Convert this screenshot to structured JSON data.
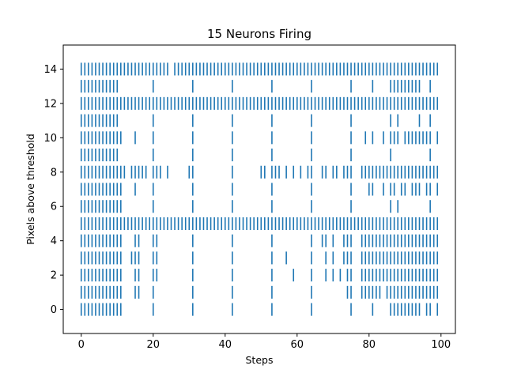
{
  "chart_data": {
    "type": "scatter",
    "marker": "vertical-line",
    "title": "15 Neurons Firing",
    "xlabel": "Steps",
    "ylabel": "Pixels above threshold",
    "xlim": [
      -5,
      104
    ],
    "ylim": [
      -1.4,
      15.4
    ],
    "xticks": [
      0,
      20,
      40,
      60,
      80,
      100
    ],
    "yticks": [
      0,
      2,
      4,
      6,
      8,
      10,
      12,
      14
    ],
    "grid": false,
    "color": "#1f77b4",
    "series": [
      {
        "y": 0,
        "x": [
          0,
          1,
          2,
          3,
          4,
          5,
          6,
          7,
          8,
          9,
          10,
          11,
          20,
          31,
          42,
          53,
          64,
          75,
          81,
          86,
          87,
          88,
          89,
          90,
          91,
          92,
          93,
          94,
          96,
          97,
          99
        ]
      },
      {
        "y": 1,
        "x": [
          0,
          1,
          2,
          3,
          4,
          5,
          6,
          7,
          8,
          9,
          10,
          11,
          15,
          16,
          20,
          31,
          42,
          53,
          64,
          74,
          75,
          78,
          79,
          80,
          81,
          82,
          83,
          85,
          86,
          87,
          88,
          89,
          90,
          91,
          92,
          93,
          94,
          95,
          96,
          97,
          98,
          99
        ]
      },
      {
        "y": 2,
        "x": [
          0,
          1,
          2,
          3,
          4,
          5,
          6,
          7,
          8,
          9,
          10,
          11,
          15,
          16,
          20,
          21,
          31,
          42,
          53,
          59,
          64,
          68,
          70,
          72,
          74,
          75,
          78,
          79,
          80,
          81,
          82,
          83,
          84,
          85,
          86,
          87,
          88,
          89,
          90,
          91,
          92,
          93,
          94,
          95,
          96,
          97,
          98,
          99
        ]
      },
      {
        "y": 3,
        "x": [
          0,
          1,
          2,
          3,
          4,
          5,
          6,
          7,
          8,
          9,
          10,
          11,
          14,
          15,
          16,
          20,
          21,
          31,
          42,
          53,
          57,
          64,
          68,
          70,
          73,
          74,
          75,
          78,
          79,
          80,
          81,
          82,
          83,
          84,
          85,
          86,
          87,
          88,
          89,
          90,
          91,
          92,
          93,
          94,
          95,
          96,
          97,
          98,
          99
        ]
      },
      {
        "y": 4,
        "x": [
          0,
          1,
          2,
          3,
          4,
          5,
          6,
          7,
          8,
          9,
          10,
          11,
          15,
          16,
          20,
          21,
          31,
          42,
          53,
          64,
          67,
          68,
          70,
          73,
          74,
          75,
          78,
          79,
          80,
          81,
          82,
          83,
          84,
          85,
          86,
          87,
          88,
          89,
          90,
          91,
          92,
          93,
          94,
          95,
          96,
          97,
          98,
          99
        ]
      },
      {
        "y": 5,
        "x": [
          0,
          1,
          2,
          3,
          4,
          5,
          6,
          7,
          8,
          9,
          10,
          11,
          12,
          13,
          14,
          15,
          16,
          17,
          18,
          19,
          20,
          21,
          22,
          23,
          24,
          25,
          26,
          27,
          28,
          29,
          30,
          31,
          32,
          33,
          34,
          35,
          36,
          37,
          38,
          39,
          40,
          41,
          42,
          43,
          44,
          45,
          46,
          47,
          48,
          49,
          50,
          51,
          52,
          53,
          54,
          55,
          56,
          57,
          58,
          59,
          60,
          61,
          62,
          63,
          64,
          65,
          66,
          67,
          68,
          69,
          70,
          71,
          72,
          73,
          74,
          75,
          76,
          77,
          78,
          79,
          80,
          81,
          82,
          83,
          84,
          85,
          86,
          87,
          88,
          89,
          90,
          91,
          92,
          93,
          94,
          95,
          96,
          97,
          98,
          99
        ]
      },
      {
        "y": 6,
        "x": [
          0,
          1,
          2,
          3,
          4,
          5,
          6,
          7,
          8,
          9,
          10,
          11,
          20,
          31,
          42,
          53,
          64,
          75,
          86,
          88,
          97
        ]
      },
      {
        "y": 7,
        "x": [
          0,
          1,
          2,
          3,
          4,
          5,
          6,
          7,
          8,
          9,
          10,
          11,
          15,
          20,
          31,
          42,
          53,
          64,
          75,
          80,
          81,
          84,
          86,
          87,
          89,
          90,
          92,
          93,
          94,
          96,
          97,
          99
        ]
      },
      {
        "y": 8,
        "x": [
          0,
          1,
          2,
          3,
          4,
          5,
          6,
          7,
          8,
          9,
          10,
          11,
          12,
          14,
          15,
          16,
          17,
          18,
          20,
          21,
          22,
          24,
          30,
          31,
          42,
          50,
          51,
          53,
          54,
          55,
          57,
          59,
          61,
          63,
          64,
          67,
          68,
          70,
          71,
          73,
          74,
          75,
          78,
          79,
          80,
          81,
          82,
          83,
          84,
          85,
          86,
          87,
          88,
          89,
          90,
          91,
          92,
          93,
          94,
          95,
          96,
          97,
          98,
          99
        ]
      },
      {
        "y": 9,
        "x": [
          0,
          1,
          2,
          3,
          4,
          5,
          6,
          7,
          8,
          9,
          10,
          20,
          31,
          42,
          53,
          64,
          75,
          86,
          97
        ]
      },
      {
        "y": 10,
        "x": [
          0,
          1,
          2,
          3,
          4,
          5,
          6,
          7,
          8,
          9,
          10,
          11,
          15,
          20,
          31,
          42,
          53,
          64,
          75,
          79,
          81,
          84,
          86,
          87,
          88,
          90,
          91,
          92,
          93,
          94,
          95,
          96,
          97,
          99
        ]
      },
      {
        "y": 11,
        "x": [
          0,
          1,
          2,
          3,
          4,
          5,
          6,
          7,
          8,
          9,
          10,
          20,
          31,
          42,
          53,
          64,
          75,
          86,
          88,
          94,
          97
        ]
      },
      {
        "y": 12,
        "x": [
          0,
          1,
          2,
          3,
          4,
          5,
          6,
          7,
          8,
          9,
          10,
          11,
          12,
          13,
          14,
          15,
          16,
          17,
          18,
          19,
          20,
          21,
          22,
          23,
          24,
          25,
          26,
          27,
          28,
          29,
          30,
          31,
          32,
          33,
          34,
          35,
          36,
          37,
          38,
          39,
          40,
          41,
          42,
          43,
          44,
          45,
          46,
          47,
          48,
          49,
          50,
          51,
          52,
          53,
          54,
          55,
          56,
          57,
          58,
          59,
          60,
          61,
          62,
          63,
          64,
          65,
          66,
          67,
          68,
          69,
          70,
          71,
          72,
          73,
          74,
          75,
          76,
          77,
          78,
          79,
          80,
          81,
          82,
          83,
          84,
          85,
          86,
          87,
          88,
          89,
          90,
          91,
          92,
          93,
          94,
          95,
          96,
          97,
          98,
          99
        ]
      },
      {
        "y": 13,
        "x": [
          0,
          1,
          2,
          3,
          4,
          5,
          6,
          7,
          8,
          9,
          10,
          20,
          31,
          42,
          53,
          64,
          75,
          81,
          86,
          87,
          88,
          89,
          90,
          91,
          92,
          93,
          94,
          97
        ]
      },
      {
        "y": 14,
        "x": [
          0,
          1,
          2,
          3,
          4,
          5,
          6,
          7,
          8,
          9,
          10,
          11,
          12,
          13,
          14,
          15,
          16,
          17,
          18,
          19,
          20,
          21,
          22,
          23,
          24,
          26,
          27,
          28,
          29,
          30,
          31,
          32,
          33,
          34,
          35,
          36,
          37,
          38,
          39,
          40,
          41,
          42,
          43,
          44,
          45,
          46,
          47,
          48,
          49,
          50,
          51,
          52,
          53,
          54,
          55,
          56,
          57,
          58,
          59,
          60,
          61,
          62,
          63,
          64,
          65,
          66,
          67,
          68,
          69,
          70,
          71,
          72,
          73,
          74,
          75,
          76,
          77,
          78,
          79,
          80,
          81,
          82,
          83,
          84,
          85,
          86,
          87,
          88,
          89,
          90,
          91,
          92,
          93,
          94,
          95,
          96,
          97,
          98,
          99
        ]
      }
    ]
  }
}
